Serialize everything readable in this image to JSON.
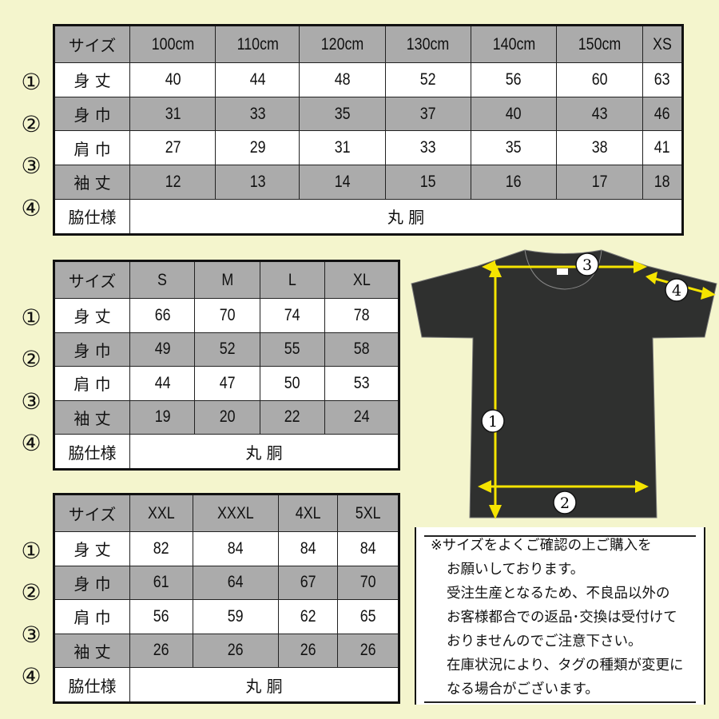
{
  "row_labels": [
    "サイズ",
    "身 丈",
    "身 巾",
    "肩 巾",
    "袖 丈",
    "脇仕様"
  ],
  "row_markers": [
    "①",
    "②",
    "③",
    "④"
  ],
  "tables": [
    {
      "sizes": [
        "100cm",
        "110cm",
        "120cm",
        "130cm",
        "140cm",
        "150cm",
        "XS"
      ],
      "rows": [
        [
          "40",
          "44",
          "48",
          "52",
          "56",
          "60",
          "63"
        ],
        [
          "31",
          "33",
          "35",
          "37",
          "40",
          "43",
          "46"
        ],
        [
          "27",
          "29",
          "31",
          "33",
          "35",
          "38",
          "41"
        ],
        [
          "12",
          "13",
          "14",
          "15",
          "16",
          "17",
          "18"
        ]
      ],
      "side_seam": "丸 胴"
    },
    {
      "sizes": [
        "S",
        "M",
        "L",
        "XL"
      ],
      "rows": [
        [
          "66",
          "70",
          "74",
          "78"
        ],
        [
          "49",
          "52",
          "55",
          "58"
        ],
        [
          "44",
          "47",
          "50",
          "53"
        ],
        [
          "19",
          "20",
          "22",
          "24"
        ]
      ],
      "side_seam": "丸 胴"
    },
    {
      "sizes": [
        "XXL",
        "XXXL",
        "4XL",
        "5XL"
      ],
      "rows": [
        [
          "82",
          "84",
          "84",
          "84"
        ],
        [
          "61",
          "64",
          "67",
          "70"
        ],
        [
          "56",
          "59",
          "62",
          "65"
        ],
        [
          "26",
          "26",
          "26",
          "26"
        ]
      ],
      "side_seam": "丸 胴"
    }
  ],
  "diagram": {
    "markers": [
      "1",
      "2",
      "3",
      "4"
    ],
    "shirt_color": "#2f302f",
    "arrow_color": "#f5e400"
  },
  "note": {
    "lines": [
      "※サイズをよくご確認の上ご購入を",
      "お願いしております。",
      "受注生産となるため、不良品以外の",
      "お客様都合での返品･交換は受付けて",
      "おりませんのでご注意下さい。",
      "在庫状況により、タグの種類が変更に",
      "なる場合がございます。"
    ]
  },
  "colors": {
    "background": "#f4f5cd",
    "header_grey": "#ababab"
  }
}
